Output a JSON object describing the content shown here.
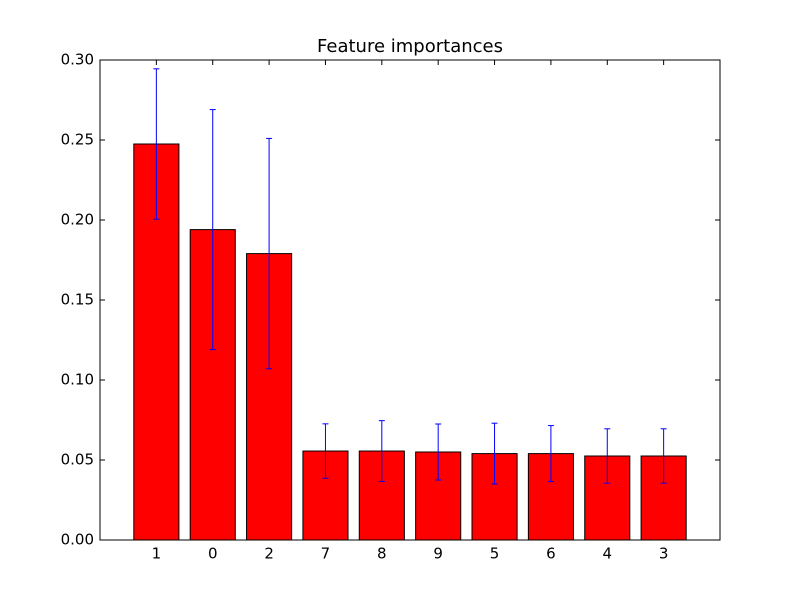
{
  "chart_data": {
    "type": "bar",
    "title": "Feature importances",
    "categories": [
      "1",
      "0",
      "2",
      "7",
      "8",
      "9",
      "5",
      "6",
      "4",
      "3"
    ],
    "values": [
      0.2475,
      0.194,
      0.179,
      0.0556,
      0.0556,
      0.055,
      0.054,
      0.054,
      0.0525,
      0.0525
    ],
    "errors": [
      0.047,
      0.075,
      0.072,
      0.017,
      0.019,
      0.0175,
      0.019,
      0.0175,
      0.017,
      0.017
    ],
    "color": "#ff0000",
    "error_color": "#0000ff",
    "ylim": [
      0,
      0.3
    ],
    "yticks": [
      {
        "value": 0,
        "label": "0.00"
      },
      {
        "value": 0.05,
        "label": "0.05"
      },
      {
        "value": 0.1,
        "label": "0.10"
      },
      {
        "value": 0.15,
        "label": "0.15"
      },
      {
        "value": 0.2,
        "label": "0.20"
      },
      {
        "value": 0.25,
        "label": "0.25"
      },
      {
        "value": 0.3,
        "label": "0.30"
      }
    ],
    "grid": false
  }
}
